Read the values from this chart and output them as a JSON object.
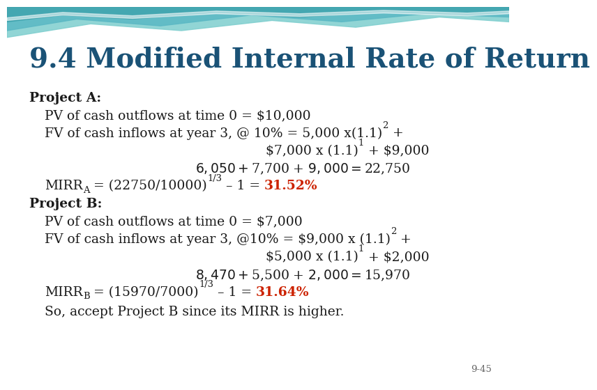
{
  "title": "9.4 Modified Internal Rate of Return",
  "title_color": "#1a5276",
  "title_fontsize": 28,
  "body_fontsize": 13.5,
  "background_color": "#ffffff",
  "text_color": "#1a1a1a",
  "red_color": "#cc2200",
  "slide_number": "9-45",
  "wave1_x": [
    0,
    120,
    250,
    380,
    500,
    620,
    720,
    720,
    0
  ],
  "wave1_y": [
    55,
    75,
    65,
    80,
    70,
    85,
    78,
    100,
    100
  ],
  "wave1_color": "#7ecece",
  "wave2_x": [
    0,
    100,
    220,
    350,
    480,
    600,
    720,
    720,
    0
  ],
  "wave2_y": [
    65,
    82,
    72,
    88,
    78,
    90,
    85,
    100,
    100
  ],
  "wave2_color": "#5ab8c4",
  "wave3_x": [
    0,
    80,
    180,
    300,
    420,
    540,
    660,
    720,
    720,
    0
  ],
  "wave3_y": [
    78,
    88,
    82,
    92,
    85,
    93,
    88,
    92,
    100,
    100
  ],
  "wave3_color": "#3aa0aa",
  "white_stripe_x": [
    0,
    80,
    180,
    300,
    420,
    540,
    660,
    720,
    720,
    660,
    540,
    420,
    300,
    180,
    80,
    0
  ],
  "white_stripe_y1": [
    80,
    88,
    83,
    90,
    86,
    91,
    87,
    90
  ],
  "white_stripe_y2": [
    84,
    92,
    87,
    94,
    90,
    95,
    91,
    94
  ]
}
